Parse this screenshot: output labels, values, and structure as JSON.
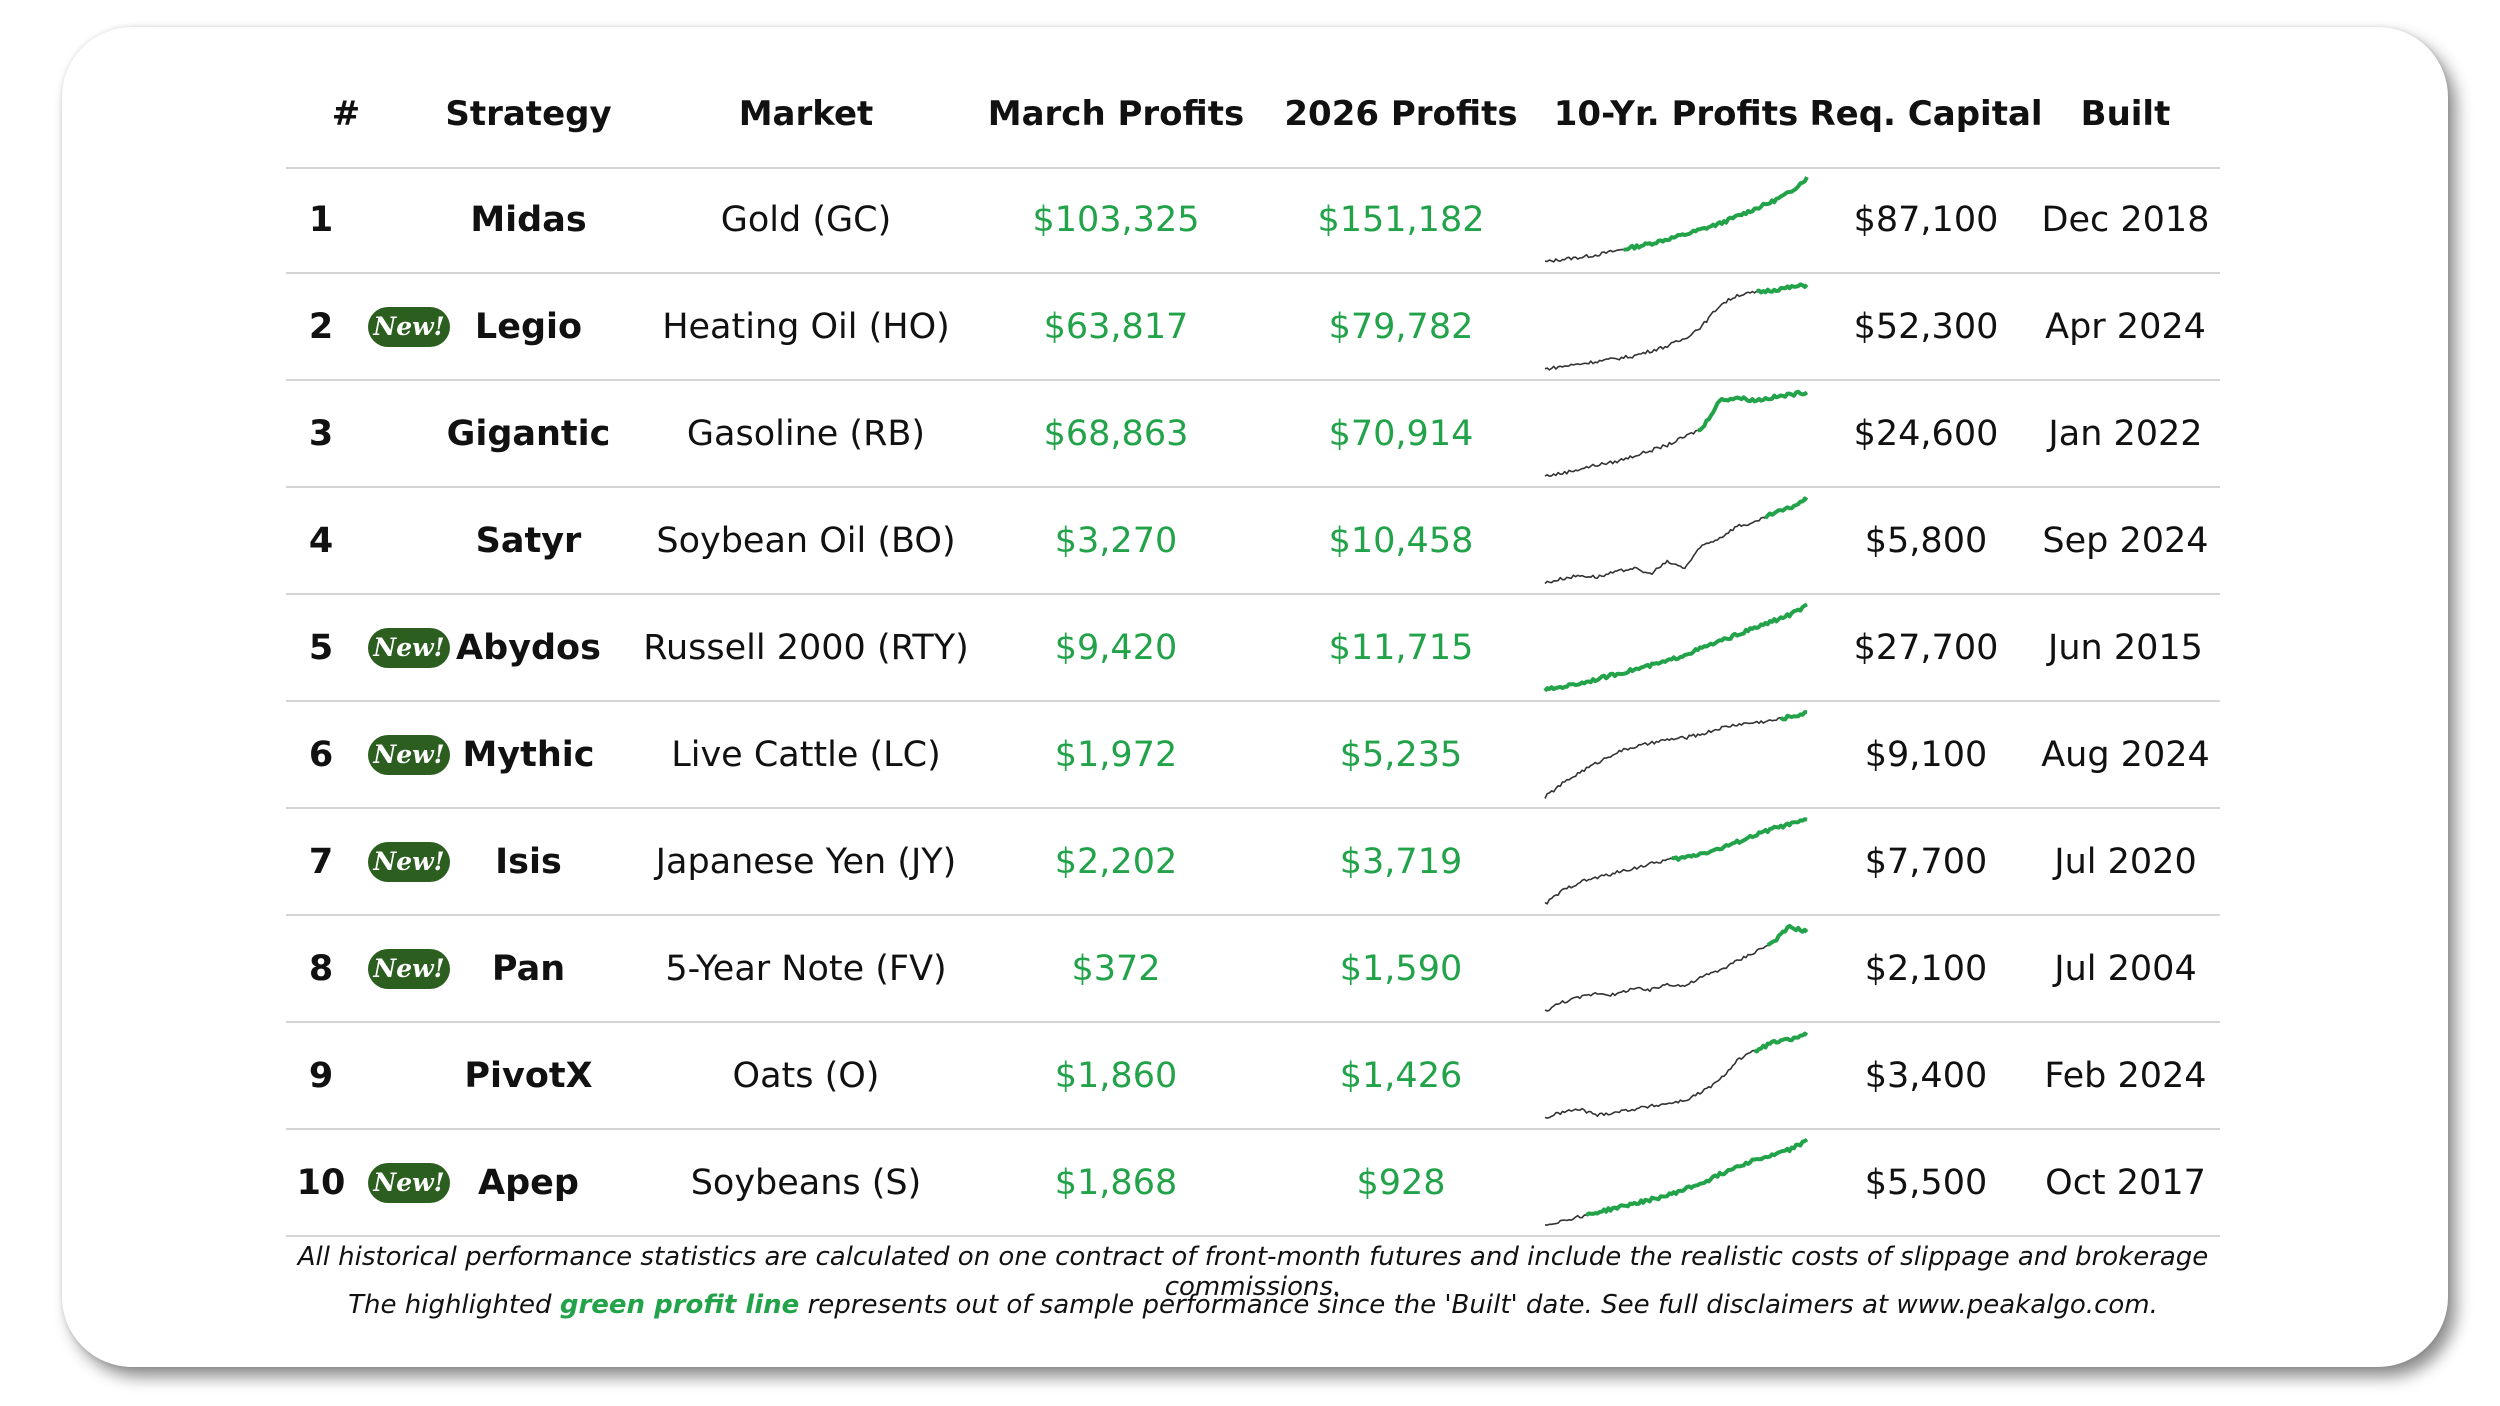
{
  "table": {
    "headers": {
      "num": "#",
      "strategy": "Strategy",
      "market": "Market",
      "march": "March Profits",
      "y2026": "2026 Profits",
      "tenyr": "10-Yr. Profits",
      "capital": "Req. Capital",
      "built": "Built"
    },
    "new_badge": "New!",
    "rows": [
      {
        "num": "1",
        "is_new": false,
        "strategy": "Midas",
        "market": "Gold (GC)",
        "march": "$103,325",
        "y2026": "$151,182",
        "capital": "$87,100",
        "built": "Dec 2018"
      },
      {
        "num": "2",
        "is_new": true,
        "strategy": "Legio",
        "market": "Heating Oil (HO)",
        "march": "$63,817",
        "y2026": "$79,782",
        "capital": "$52,300",
        "built": "Apr 2024"
      },
      {
        "num": "3",
        "is_new": false,
        "strategy": "Gigantic",
        "market": "Gasoline (RB)",
        "march": "$68,863",
        "y2026": "$70,914",
        "capital": "$24,600",
        "built": "Jan 2022"
      },
      {
        "num": "4",
        "is_new": false,
        "strategy": "Satyr",
        "market": "Soybean Oil (BO)",
        "march": "$3,270",
        "y2026": "$10,458",
        "capital": "$5,800",
        "built": "Sep 2024"
      },
      {
        "num": "5",
        "is_new": true,
        "strategy": "Abydos",
        "market": "Russell 2000 (RTY)",
        "march": "$9,420",
        "y2026": "$11,715",
        "capital": "$27,700",
        "built": "Jun 2015"
      },
      {
        "num": "6",
        "is_new": true,
        "strategy": "Mythic",
        "market": "Live Cattle (LC)",
        "march": "$1,972",
        "y2026": "$5,235",
        "capital": "$9,100",
        "built": "Aug 2024"
      },
      {
        "num": "7",
        "is_new": true,
        "strategy": "Isis",
        "market": "Japanese Yen (JY)",
        "march": "$2,202",
        "y2026": "$3,719",
        "capital": "$7,700",
        "built": "Jul 2020"
      },
      {
        "num": "8",
        "is_new": true,
        "strategy": "Pan",
        "market": "5-Year Note (FV)",
        "march": "$372",
        "y2026": "$1,590",
        "capital": "$2,100",
        "built": "Jul 2004"
      },
      {
        "num": "9",
        "is_new": false,
        "strategy": "PivotX",
        "market": "Oats (O)",
        "march": "$1,860",
        "y2026": "$1,426",
        "capital": "$3,400",
        "built": "Feb 2024"
      },
      {
        "num": "10",
        "is_new": true,
        "strategy": "Apep",
        "market": "Soybeans (S)",
        "march": "$1,868",
        "y2026": "$928",
        "capital": "$5,500",
        "built": "Oct 2017"
      }
    ]
  },
  "sparklines": [
    {
      "values": [
        0,
        3,
        5,
        8,
        12,
        16,
        20,
        25,
        30,
        36,
        42,
        50,
        58,
        66,
        76,
        92
      ],
      "oos_fraction": 0.3
    },
    {
      "values": [
        0,
        2,
        4,
        6,
        8,
        10,
        14,
        18,
        24,
        34,
        50,
        58,
        60,
        62,
        64,
        66
      ],
      "oos_fraction": 0.81
    },
    {
      "values": [
        0,
        2,
        5,
        8,
        10,
        14,
        18,
        22,
        28,
        34,
        54,
        56,
        54,
        56,
        58,
        60
      ],
      "oos_fraction": 0.58
    },
    {
      "values": [
        0,
        3,
        5,
        4,
        7,
        10,
        6,
        14,
        10,
        25,
        30,
        38,
        40,
        46,
        50,
        56
      ],
      "oos_fraction": 0.84
    },
    {
      "values": [
        0,
        3,
        6,
        10,
        14,
        18,
        22,
        26,
        32,
        38,
        44,
        50,
        56,
        62,
        68,
        76
      ],
      "oos_fraction": 0.0
    },
    {
      "values": [
        0,
        14,
        26,
        36,
        46,
        52,
        56,
        60,
        62,
        66,
        72,
        76,
        78,
        80,
        84,
        88
      ],
      "oos_fraction": 0.9
    },
    {
      "values": [
        0,
        12,
        20,
        24,
        28,
        32,
        36,
        40,
        42,
        46,
        50,
        56,
        62,
        68,
        72,
        76
      ],
      "oos_fraction": 0.48
    },
    {
      "values": [
        0,
        8,
        12,
        16,
        14,
        20,
        18,
        24,
        22,
        30,
        36,
        44,
        52,
        60,
        74,
        70
      ],
      "oos_fraction": 0.85
    },
    {
      "values": [
        0,
        4,
        6,
        2,
        4,
        6,
        8,
        10,
        12,
        18,
        26,
        40,
        46,
        52,
        54,
        58
      ],
      "oos_fraction": 0.8
    },
    {
      "values": [
        0,
        4,
        8,
        12,
        16,
        20,
        24,
        28,
        34,
        40,
        48,
        56,
        62,
        66,
        72,
        80
      ],
      "oos_fraction": 0.16
    }
  ],
  "footnote": {
    "line1": "All historical performance statistics are calculated on one contract of front-month futures and include the realistic costs of slippage and brokerage commissions.",
    "line2_before": "The highlighted",
    "line2_highlight": "green profit line",
    "line2_after": "represents out of sample performance since the 'Built' date. See full disclaimers at www.peakalgo.com."
  },
  "colors": {
    "profit_green": "#22a34a",
    "badge_green": "#2b5e1f",
    "line_dark": "#333333"
  }
}
